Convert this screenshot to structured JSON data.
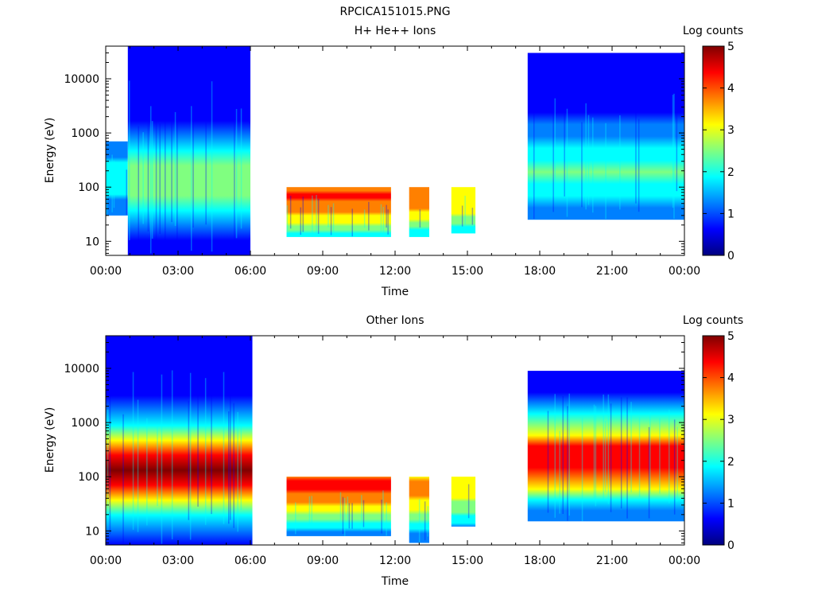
{
  "figure": {
    "title": "RPCICA151015.PNG"
  },
  "colormap": [
    "#00007f",
    "#0000ff",
    "#0080ff",
    "#00ffff",
    "#80ff80",
    "#ffff00",
    "#ff8000",
    "#ff0000",
    "#7f0000"
  ],
  "chart_data": [
    {
      "type": "heatmap",
      "title": "H+ He++ Ions",
      "xlabel": "Time",
      "ylabel": "Energy (eV)",
      "x_scale": "time",
      "y_scale": "log",
      "xlim": [
        "00:00",
        "24:00"
      ],
      "ylim": [
        5.5,
        40000
      ],
      "xticks": [
        "00:00",
        "03:00",
        "06:00",
        "09:00",
        "12:00",
        "15:00",
        "18:00",
        "21:00",
        "00:00"
      ],
      "yticks": [
        10,
        100,
        1000,
        10000
      ],
      "colorbar": {
        "label": "Log counts",
        "range": [
          0,
          5
        ],
        "ticks": [
          "0",
          "1",
          "2",
          "3",
          "4",
          "5"
        ]
      },
      "blocks": [
        {
          "start": "00:00",
          "end": "00:55",
          "emin": 30,
          "emax": 700,
          "peak_energy": 150,
          "level": 1.2
        },
        {
          "start": "00:55",
          "end": "06:00",
          "emin": 5.5,
          "emax": 40000,
          "peak_energy": 130,
          "level": 2.2
        },
        {
          "start": "07:30",
          "end": "11:50",
          "emin": 12,
          "emax": 100,
          "peak_energy": 70,
          "level": 3.5
        },
        {
          "start": "12:35",
          "end": "13:25",
          "emin": 12,
          "emax": 100,
          "peak_energy": 70,
          "level": 3.2
        },
        {
          "start": "14:20",
          "end": "15:20",
          "emin": 14,
          "emax": 100,
          "peak_energy": 70,
          "level": 2.8
        },
        {
          "start": "17:30",
          "end": "24:00",
          "emin": 25,
          "emax": 30000,
          "peak_energy": 200,
          "level": 1.6
        }
      ]
    },
    {
      "type": "heatmap",
      "title": "Other Ions",
      "xlabel": "Time",
      "ylabel": "Energy (eV)",
      "x_scale": "time",
      "y_scale": "log",
      "xlim": [
        "00:00",
        "24:00"
      ],
      "ylim": [
        5.5,
        40000
      ],
      "xticks": [
        "00:00",
        "03:00",
        "06:00",
        "09:00",
        "12:00",
        "15:00",
        "18:00",
        "21:00",
        "00:00"
      ],
      "yticks": [
        10,
        100,
        1000,
        10000
      ],
      "colorbar": {
        "label": "Log counts",
        "range": [
          0,
          5
        ],
        "ticks": [
          "0",
          "1",
          "2",
          "3",
          "4",
          "5"
        ]
      },
      "blocks": [
        {
          "start": "00:00",
          "end": "06:05",
          "emin": 5.5,
          "emax": 40000,
          "peak_energy": 150,
          "level": 4.3
        },
        {
          "start": "07:30",
          "end": "11:50",
          "emin": 8,
          "emax": 100,
          "peak_energy": 70,
          "level": 3.6
        },
        {
          "start": "12:35",
          "end": "13:25",
          "emin": 6,
          "emax": 100,
          "peak_energy": 60,
          "level": 3.0
        },
        {
          "start": "14:20",
          "end": "15:20",
          "emin": 12,
          "emax": 100,
          "peak_energy": 70,
          "level": 2.6
        },
        {
          "start": "17:30",
          "end": "24:00",
          "emin": 15,
          "emax": 9000,
          "peak_energy": 200,
          "level": 4.0
        }
      ]
    }
  ]
}
